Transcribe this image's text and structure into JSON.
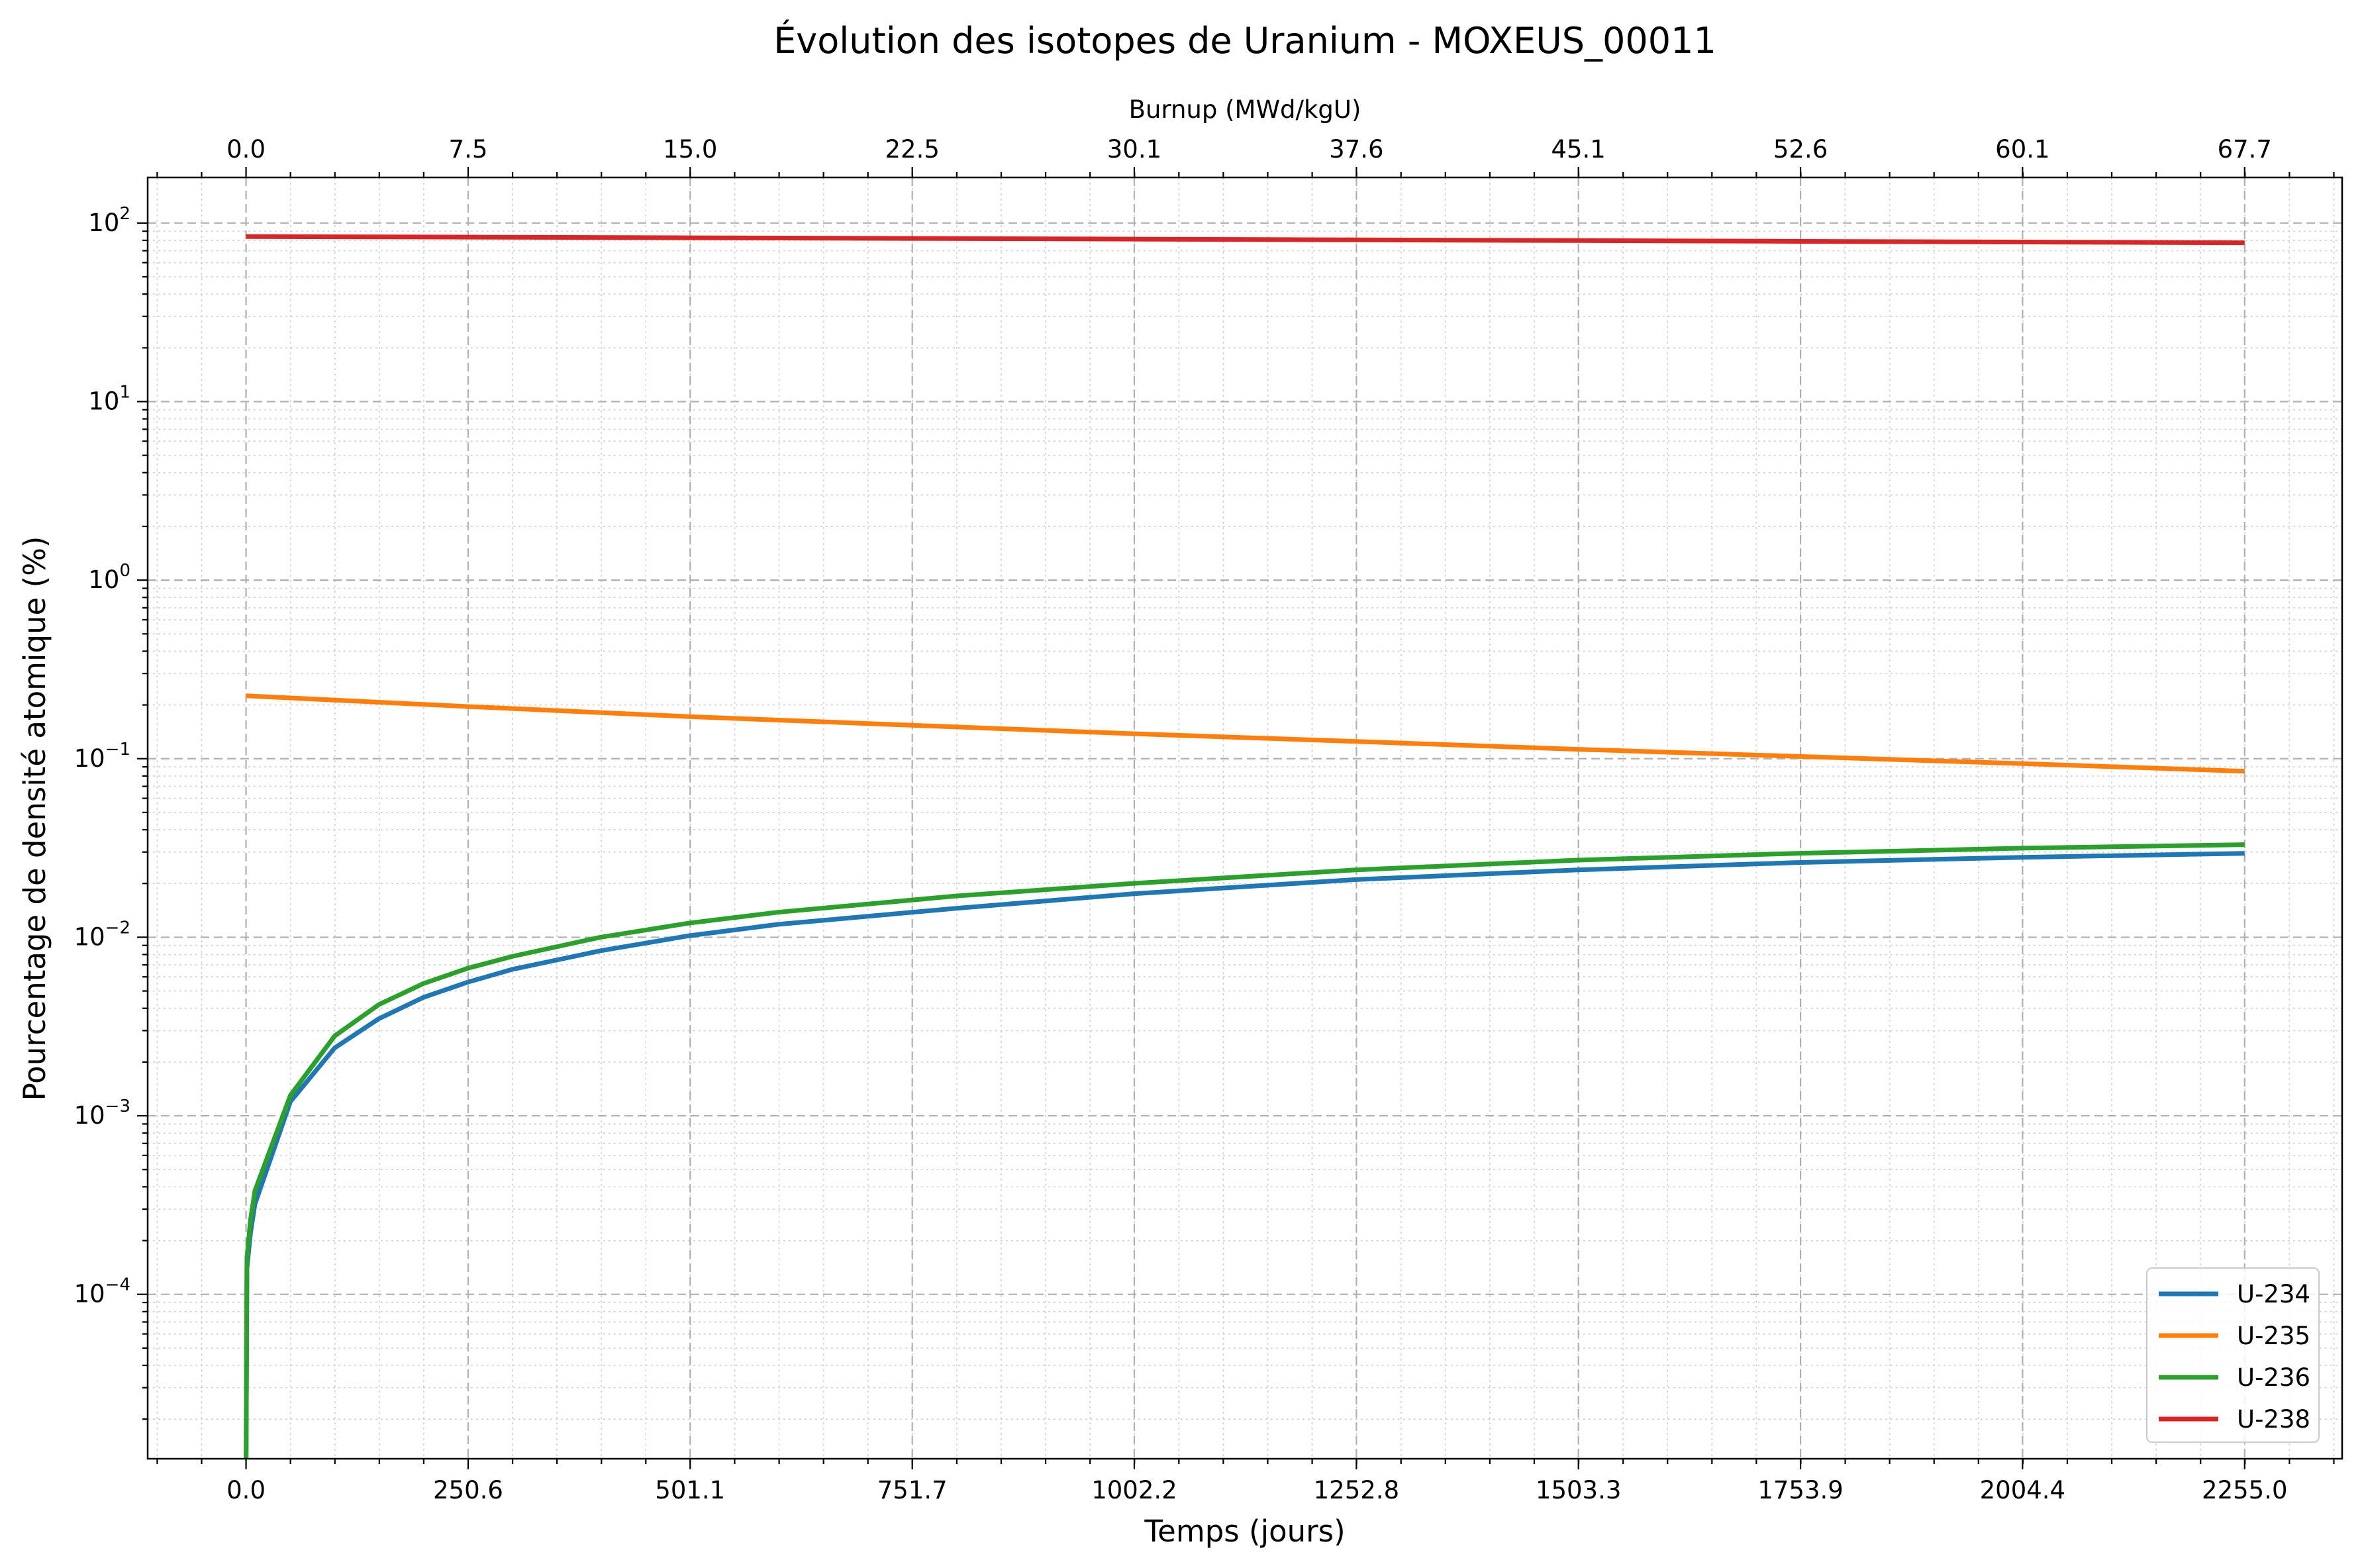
{
  "chart_data": {
    "type": "line",
    "title": "Évolution des isotopes de Uranium - MOXEUS_00011",
    "xlabel": "Temps (jours)",
    "ylabel": "Pourcentage de densité atomique (%)",
    "top_xlabel": "Burnup (MWd/kgU)",
    "yscale": "log",
    "xlim": [
      -111,
      2365
    ],
    "ylim": [
      1.2e-05,
      180
    ],
    "x_ticks": [
      "0.0",
      "250.6",
      "501.1",
      "751.7",
      "1002.2",
      "1252.8",
      "1503.3",
      "1753.9",
      "2004.4",
      "2255.0"
    ],
    "top_x_ticks": [
      "0.0",
      "7.5",
      "15.0",
      "22.5",
      "30.1",
      "37.6",
      "45.1",
      "52.6",
      "60.1",
      "67.7"
    ],
    "y_ticks": [
      {
        "base": "10",
        "exp": "−4"
      },
      {
        "base": "10",
        "exp": "−3"
      },
      {
        "base": "10",
        "exp": "−2"
      },
      {
        "base": "10",
        "exp": "−1"
      },
      {
        "base": "10",
        "exp": "0"
      },
      {
        "base": "10",
        "exp": "1"
      },
      {
        "base": "10",
        "exp": "2"
      }
    ],
    "grid": true,
    "legend_position": "lower-right",
    "series": [
      {
        "name": "U-234",
        "color": "#1f77b4",
        "x": [
          0,
          1,
          5,
          10,
          50,
          100,
          150,
          200,
          250,
          300,
          400,
          500,
          600,
          800,
          1000,
          1250,
          1500,
          1750,
          2000,
          2255
        ],
        "y": [
          1e-05,
          0.00014,
          0.00022,
          0.00032,
          0.0012,
          0.0024,
          0.0035,
          0.0046,
          0.0056,
          0.0066,
          0.0084,
          0.0102,
          0.0118,
          0.0145,
          0.0175,
          0.021,
          0.0238,
          0.0262,
          0.028,
          0.0295
        ]
      },
      {
        "name": "U-235",
        "color": "#ff7f0e",
        "x": [
          0,
          250,
          500,
          750,
          1000,
          1250,
          1500,
          1750,
          2000,
          2255
        ],
        "y": [
          0.225,
          0.196,
          0.172,
          0.154,
          0.138,
          0.125,
          0.113,
          0.103,
          0.094,
          0.085
        ]
      },
      {
        "name": "U-236",
        "color": "#2ca02c",
        "x": [
          0,
          1,
          5,
          10,
          50,
          100,
          150,
          200,
          250,
          300,
          400,
          500,
          600,
          800,
          1000,
          1250,
          1500,
          1750,
          2000,
          2255
        ],
        "y": [
          1e-05,
          0.00016,
          0.00026,
          0.00038,
          0.0013,
          0.0028,
          0.0042,
          0.0055,
          0.0067,
          0.0078,
          0.01,
          0.012,
          0.0138,
          0.017,
          0.02,
          0.0238,
          0.027,
          0.0295,
          0.0315,
          0.033
        ]
      },
      {
        "name": "U-238",
        "color": "#d62728",
        "x": [
          0,
          250,
          500,
          750,
          1000,
          1250,
          1500,
          1750,
          2000,
          2255
        ],
        "y": [
          84.0,
          83.4,
          82.7,
          82.0,
          81.3,
          80.5,
          79.8,
          79.0,
          78.3,
          77.5
        ]
      }
    ]
  }
}
